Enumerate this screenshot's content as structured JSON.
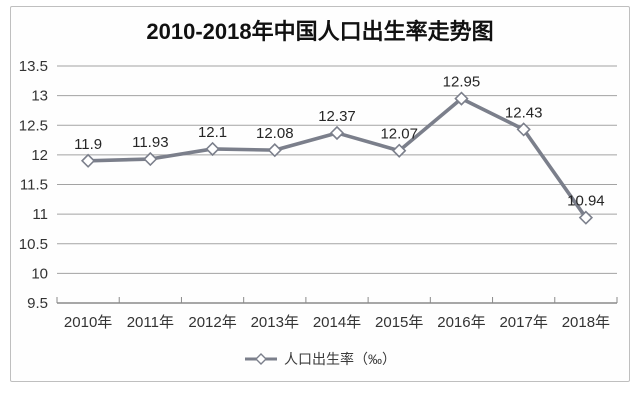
{
  "chart_data": {
    "type": "line",
    "title": "2010-2018年中国人口出生率走势图",
    "categories": [
      "2010年",
      "2011年",
      "2012年",
      "2013年",
      "2014年",
      "2015年",
      "2016年",
      "2017年",
      "2018年"
    ],
    "series": [
      {
        "name": "人口出生率（‰）",
        "values": [
          11.9,
          11.93,
          12.1,
          12.08,
          12.37,
          12.07,
          12.95,
          12.43,
          10.94
        ]
      }
    ],
    "xlabel": "",
    "ylabel": "",
    "ylim": [
      9.5,
      13.5
    ],
    "yticks": [
      9.5,
      10,
      10.5,
      11,
      11.5,
      12,
      12.5,
      13,
      13.5
    ],
    "grid": true,
    "data_labels": true,
    "marker": "diamond",
    "legend_position": "bottom",
    "colors": {
      "line": "#7b7f8b",
      "marker_fill": "#ffffff",
      "grid": "#a3a3a3",
      "axis": "#8a8a8a",
      "tick_text": "#333333",
      "data_label_text": "#262626",
      "title_text": "#111111"
    }
  }
}
